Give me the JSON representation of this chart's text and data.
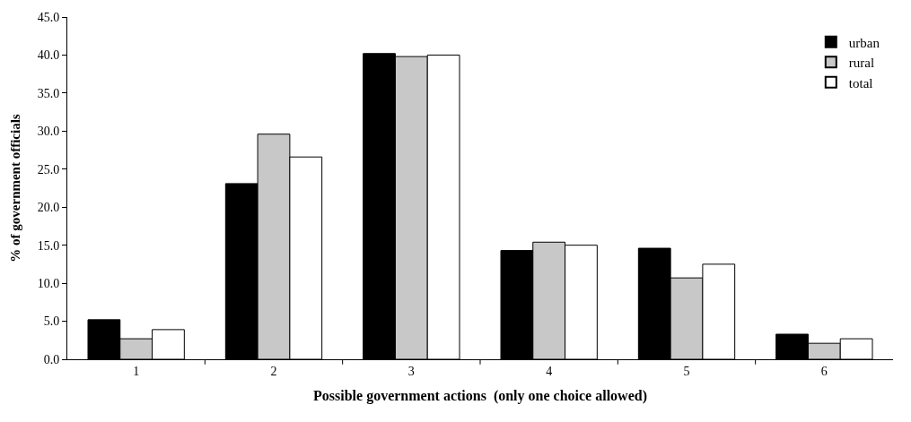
{
  "chart_data": {
    "type": "bar",
    "xlabel": "Possible government actions  (only one choice allowed)",
    "ylabel": "% of government officials",
    "categories": [
      "1",
      "2",
      "3",
      "4",
      "5",
      "6"
    ],
    "series": [
      {
        "name": "urban",
        "color": "#000000",
        "values": [
          5.2,
          23.1,
          40.2,
          14.3,
          14.6,
          3.3
        ]
      },
      {
        "name": "rural",
        "color": "#c8c8c8",
        "values": [
          2.7,
          29.6,
          39.8,
          15.4,
          10.7,
          2.1
        ]
      },
      {
        "name": "total",
        "color": "#ffffff",
        "values": [
          3.9,
          26.6,
          40.0,
          15.0,
          12.5,
          2.7
        ]
      }
    ],
    "ylim": [
      0,
      45
    ],
    "yticks": [
      {
        "value": 0,
        "label": "0.0"
      },
      {
        "value": 5,
        "label": "5.0"
      },
      {
        "value": 10,
        "label": "10.0"
      },
      {
        "value": 15,
        "label": "15.0"
      },
      {
        "value": 20,
        "label": "20.0"
      },
      {
        "value": 25,
        "label": "25.0"
      },
      {
        "value": 30,
        "label": "30.0"
      },
      {
        "value": 35,
        "label": "35.0"
      },
      {
        "value": 40,
        "label": "40.0"
      },
      {
        "value": 45,
        "label": "45.0"
      }
    ],
    "grid": false,
    "legend": "top right"
  }
}
